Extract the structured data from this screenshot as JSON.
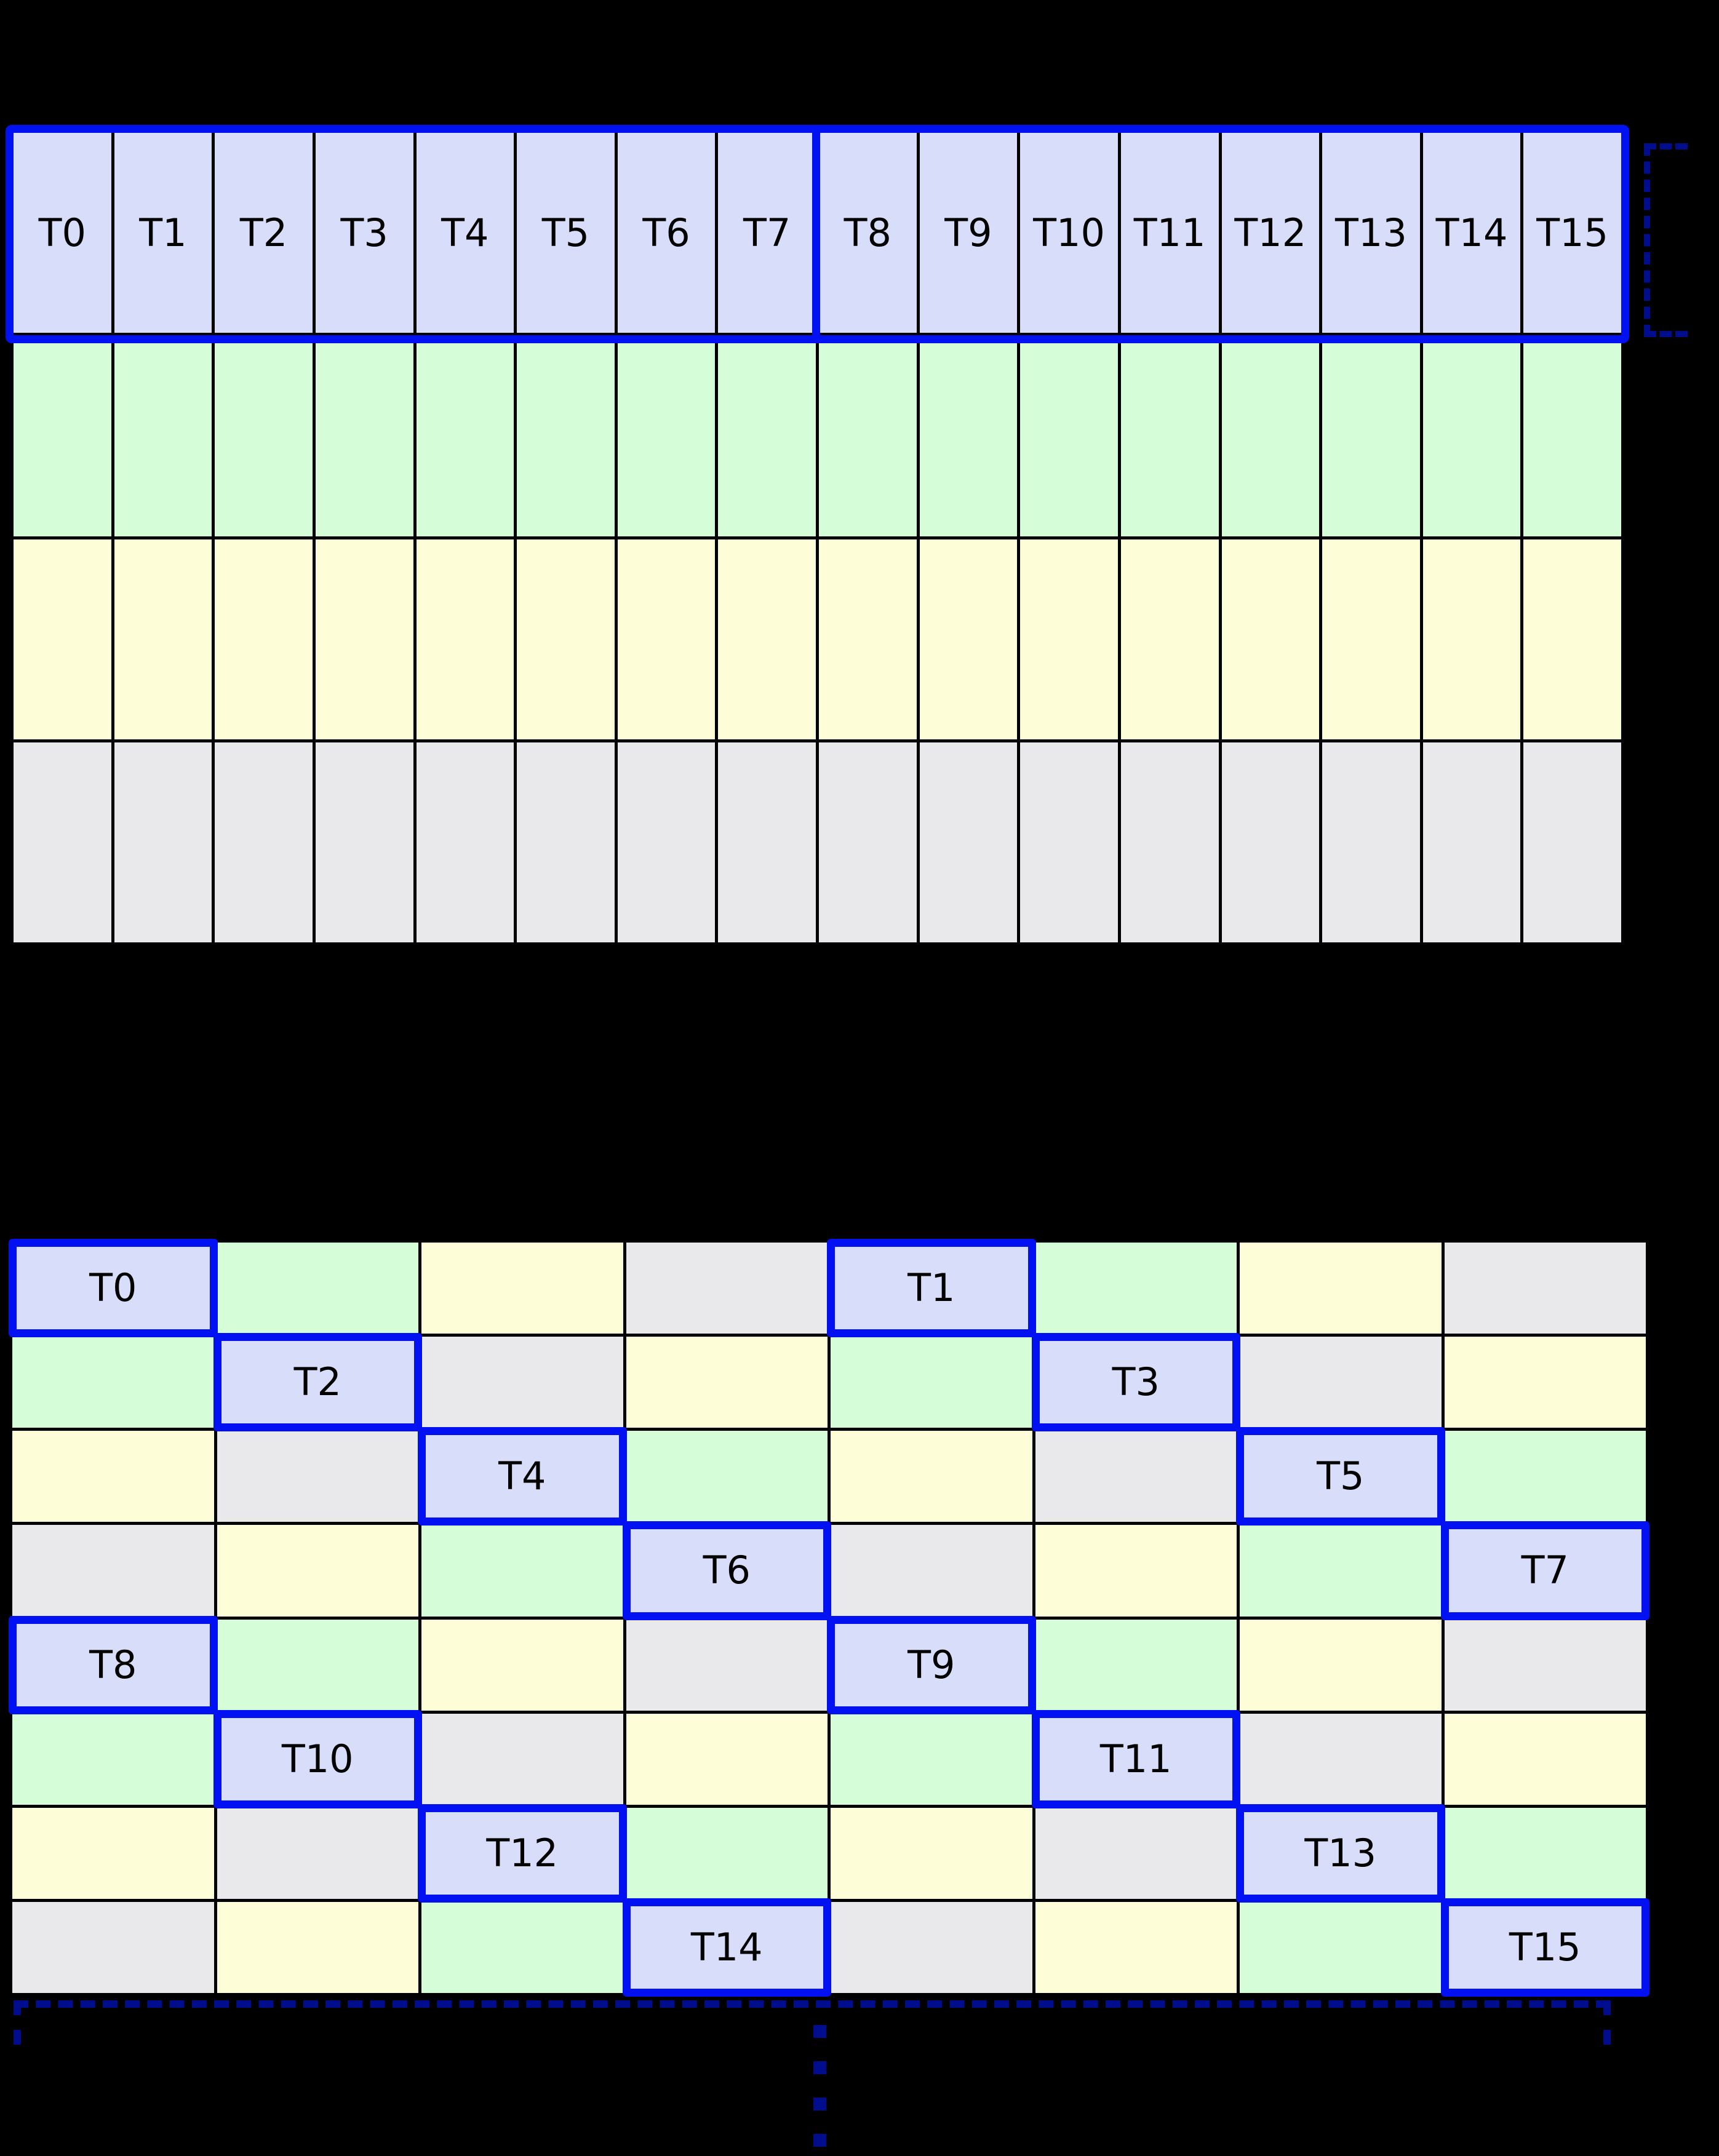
{
  "canvas": {
    "background_color": "#000000"
  },
  "colors": {
    "thread_cell": "#d8defa",
    "green_cell": "#d5fdd8",
    "yellow_cell": "#fdfdd8",
    "gray_cell": "#e9e9eb",
    "highlight_border": "#0211f2",
    "annotation_navy": "#000d8c",
    "grid_line": "#000000",
    "label_text": "#000000"
  },
  "top_grid": {
    "columns": 16,
    "rows": 4,
    "row_colors": [
      "thread",
      "green",
      "yellow",
      "gray"
    ],
    "thread_labels": [
      "T0",
      "T1",
      "T2",
      "T3",
      "T4",
      "T5",
      "T6",
      "T7",
      "T8",
      "T9",
      "T10",
      "T11",
      "T12",
      "T13",
      "T14",
      "T15"
    ],
    "highlighted_row": 0,
    "group_split_after_column": 8
  },
  "bottom_grid": {
    "columns": 8,
    "rows": 8,
    "color_rule": "palette index = (row mod 4) XOR (col mod 4); palette = [thread, green, yellow, gray]",
    "cells": [
      [
        {
          "color": "thread",
          "label": "T0"
        },
        {
          "color": "green",
          "label": ""
        },
        {
          "color": "yellow",
          "label": ""
        },
        {
          "color": "gray",
          "label": ""
        },
        {
          "color": "thread",
          "label": "T1"
        },
        {
          "color": "green",
          "label": ""
        },
        {
          "color": "yellow",
          "label": ""
        },
        {
          "color": "gray",
          "label": ""
        }
      ],
      [
        {
          "color": "green",
          "label": ""
        },
        {
          "color": "thread",
          "label": "T2"
        },
        {
          "color": "gray",
          "label": ""
        },
        {
          "color": "yellow",
          "label": ""
        },
        {
          "color": "green",
          "label": ""
        },
        {
          "color": "thread",
          "label": "T3"
        },
        {
          "color": "gray",
          "label": ""
        },
        {
          "color": "yellow",
          "label": ""
        }
      ],
      [
        {
          "color": "yellow",
          "label": ""
        },
        {
          "color": "gray",
          "label": ""
        },
        {
          "color": "thread",
          "label": "T4"
        },
        {
          "color": "green",
          "label": ""
        },
        {
          "color": "yellow",
          "label": ""
        },
        {
          "color": "gray",
          "label": ""
        },
        {
          "color": "thread",
          "label": "T5"
        },
        {
          "color": "green",
          "label": ""
        }
      ],
      [
        {
          "color": "gray",
          "label": ""
        },
        {
          "color": "yellow",
          "label": ""
        },
        {
          "color": "green",
          "label": ""
        },
        {
          "color": "thread",
          "label": "T6"
        },
        {
          "color": "gray",
          "label": ""
        },
        {
          "color": "yellow",
          "label": ""
        },
        {
          "color": "green",
          "label": ""
        },
        {
          "color": "thread",
          "label": "T7"
        }
      ],
      [
        {
          "color": "thread",
          "label": "T8"
        },
        {
          "color": "green",
          "label": ""
        },
        {
          "color": "yellow",
          "label": ""
        },
        {
          "color": "gray",
          "label": ""
        },
        {
          "color": "thread",
          "label": "T9"
        },
        {
          "color": "green",
          "label": ""
        },
        {
          "color": "yellow",
          "label": ""
        },
        {
          "color": "gray",
          "label": ""
        }
      ],
      [
        {
          "color": "green",
          "label": ""
        },
        {
          "color": "thread",
          "label": "T10"
        },
        {
          "color": "gray",
          "label": ""
        },
        {
          "color": "yellow",
          "label": ""
        },
        {
          "color": "green",
          "label": ""
        },
        {
          "color": "thread",
          "label": "T11"
        },
        {
          "color": "gray",
          "label": ""
        },
        {
          "color": "yellow",
          "label": ""
        }
      ],
      [
        {
          "color": "yellow",
          "label": ""
        },
        {
          "color": "gray",
          "label": ""
        },
        {
          "color": "thread",
          "label": "T12"
        },
        {
          "color": "green",
          "label": ""
        },
        {
          "color": "yellow",
          "label": ""
        },
        {
          "color": "gray",
          "label": ""
        },
        {
          "color": "thread",
          "label": "T13"
        },
        {
          "color": "green",
          "label": ""
        }
      ],
      [
        {
          "color": "gray",
          "label": ""
        },
        {
          "color": "yellow",
          "label": ""
        },
        {
          "color": "green",
          "label": ""
        },
        {
          "color": "thread",
          "label": "T14"
        },
        {
          "color": "gray",
          "label": ""
        },
        {
          "color": "yellow",
          "label": ""
        },
        {
          "color": "green",
          "label": ""
        },
        {
          "color": "thread",
          "label": "T15"
        }
      ]
    ]
  },
  "annotations": {
    "right_bracket_style": "dashed navy square bracket spanning highlighted top row, arms pointing right",
    "bottom_bracket_style": "dashed navy bracket below swizzled grid, end ticks pointing down",
    "continuation_ellipsis_dots": 4
  }
}
